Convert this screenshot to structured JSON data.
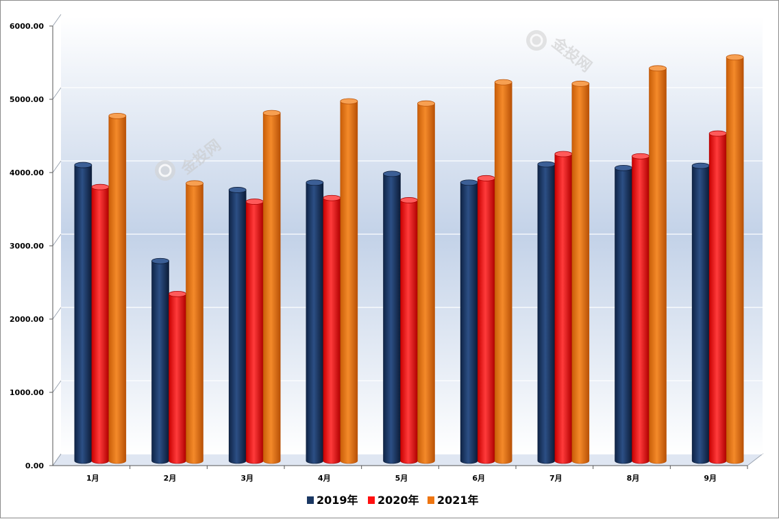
{
  "chart_data": {
    "type": "bar",
    "title": "",
    "xlabel": "",
    "ylabel": "",
    "ylim": [
      0,
      6000
    ],
    "yticks": [
      "0.00",
      "1000.00",
      "2000.00",
      "3000.00",
      "4000.00",
      "5000.00",
      "6000.00"
    ],
    "categories": [
      "1月",
      "2月",
      "3月",
      "4月",
      "5月",
      "6月",
      "7月",
      "8月",
      "9月"
    ],
    "series": [
      {
        "name": "2019年",
        "color": "#1b3863",
        "values": [
          3990,
          2680,
          3650,
          3750,
          3870,
          3750,
          4000,
          3950,
          3980
        ]
      },
      {
        "name": "2020年",
        "color": "#ff1010",
        "values": [
          3690,
          2230,
          3490,
          3540,
          3510,
          3810,
          4140,
          4110,
          4420
        ]
      },
      {
        "name": "2021年",
        "color": "#ee7511",
        "values": [
          4660,
          3740,
          4700,
          4860,
          4830,
          5120,
          5100,
          5310,
          5460
        ]
      }
    ],
    "grid": true,
    "legend_position": "bottom",
    "watermark": "金投网"
  }
}
